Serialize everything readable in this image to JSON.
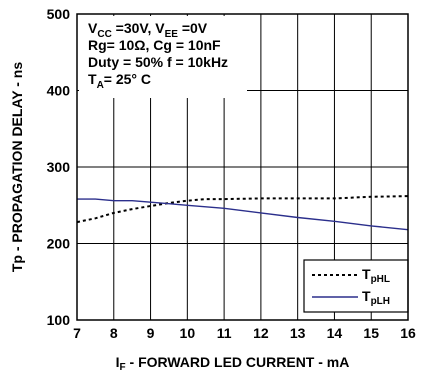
{
  "chart_data": {
    "type": "line",
    "xlabel": {
      "main": "I",
      "sub": "F",
      "rest": " - FORWARD LED CURRENT - mA"
    },
    "ylabel": "Tp - PROPAGATION DELAY - ns",
    "xlim": [
      7,
      16
    ],
    "ylim": [
      100,
      500
    ],
    "xticks": [
      7,
      8,
      9,
      10,
      11,
      12,
      13,
      14,
      15,
      16
    ],
    "yticks": [
      100,
      200,
      300,
      400,
      500
    ],
    "grid": true,
    "legend_position": "bottom-right",
    "annotations": [
      [
        {
          "t": "V"
        },
        {
          "t": "CC",
          "sub": true
        },
        {
          "t": " =30V, V"
        },
        {
          "t": "EE",
          "sub": true
        },
        {
          "t": " =0V"
        }
      ],
      [
        {
          "t": "Rg= 10Ω, Cg = 10nF"
        }
      ],
      [
        {
          "t": "Duty = 50% f = 10kHz"
        }
      ],
      [
        {
          "t": "T"
        },
        {
          "t": "A",
          "sub": true
        },
        {
          "t": "= 25° C"
        }
      ]
    ],
    "series": [
      {
        "name": {
          "main": "T",
          "sub": "pHL"
        },
        "style": "dotted",
        "color": "#000000",
        "x": [
          7.0,
          7.5,
          8.0,
          8.5,
          9.0,
          9.5,
          10.0,
          10.5,
          11.0,
          12.0,
          13.0,
          14.0,
          15.0,
          16.0
        ],
        "y": [
          228,
          233,
          240,
          245,
          249,
          253,
          256,
          258,
          258,
          259,
          259,
          259,
          261,
          262
        ]
      },
      {
        "name": {
          "main": "T",
          "sub": "pLH"
        },
        "style": "solid",
        "color": "#2b2f8c",
        "x": [
          7.0,
          7.5,
          8.0,
          8.5,
          9.0,
          9.5,
          10.0,
          11.0,
          12.0,
          13.0,
          14.0,
          15.0,
          16.0
        ],
        "y": [
          258,
          258,
          256,
          256,
          254,
          252,
          250,
          246,
          240,
          234,
          229,
          223,
          218
        ]
      }
    ]
  }
}
